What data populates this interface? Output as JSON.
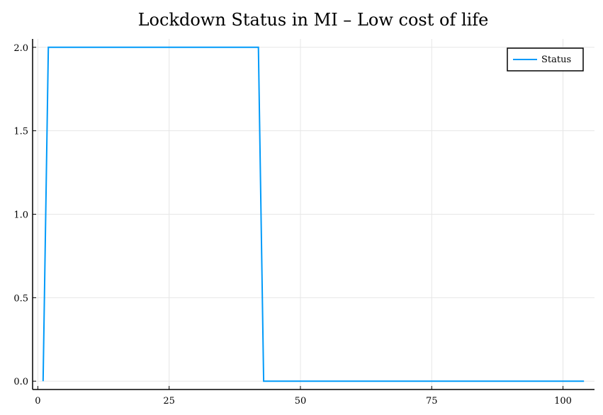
{
  "chart_data": {
    "type": "line",
    "title": "Lockdown Status in MI – Low cost of life",
    "xlabel": "",
    "ylabel": "",
    "xlim": [
      -1,
      106
    ],
    "ylim": [
      -0.05,
      2.05
    ],
    "x_ticks": [
      0,
      25,
      50,
      75,
      100
    ],
    "y_ticks": [
      0.0,
      0.5,
      1.0,
      1.5,
      2.0
    ],
    "x_tick_labels": [
      "0",
      "25",
      "50",
      "75",
      "100"
    ],
    "y_tick_labels": [
      "0.0",
      "0.5",
      "1.0",
      "1.5",
      "2.0"
    ],
    "grid": true,
    "legend_position": "top-right",
    "series": [
      {
        "name": "Status",
        "color": "#009af9",
        "x": [
          1,
          2,
          42,
          43,
          104
        ],
        "y": [
          0,
          2,
          2,
          0,
          0
        ]
      }
    ]
  }
}
